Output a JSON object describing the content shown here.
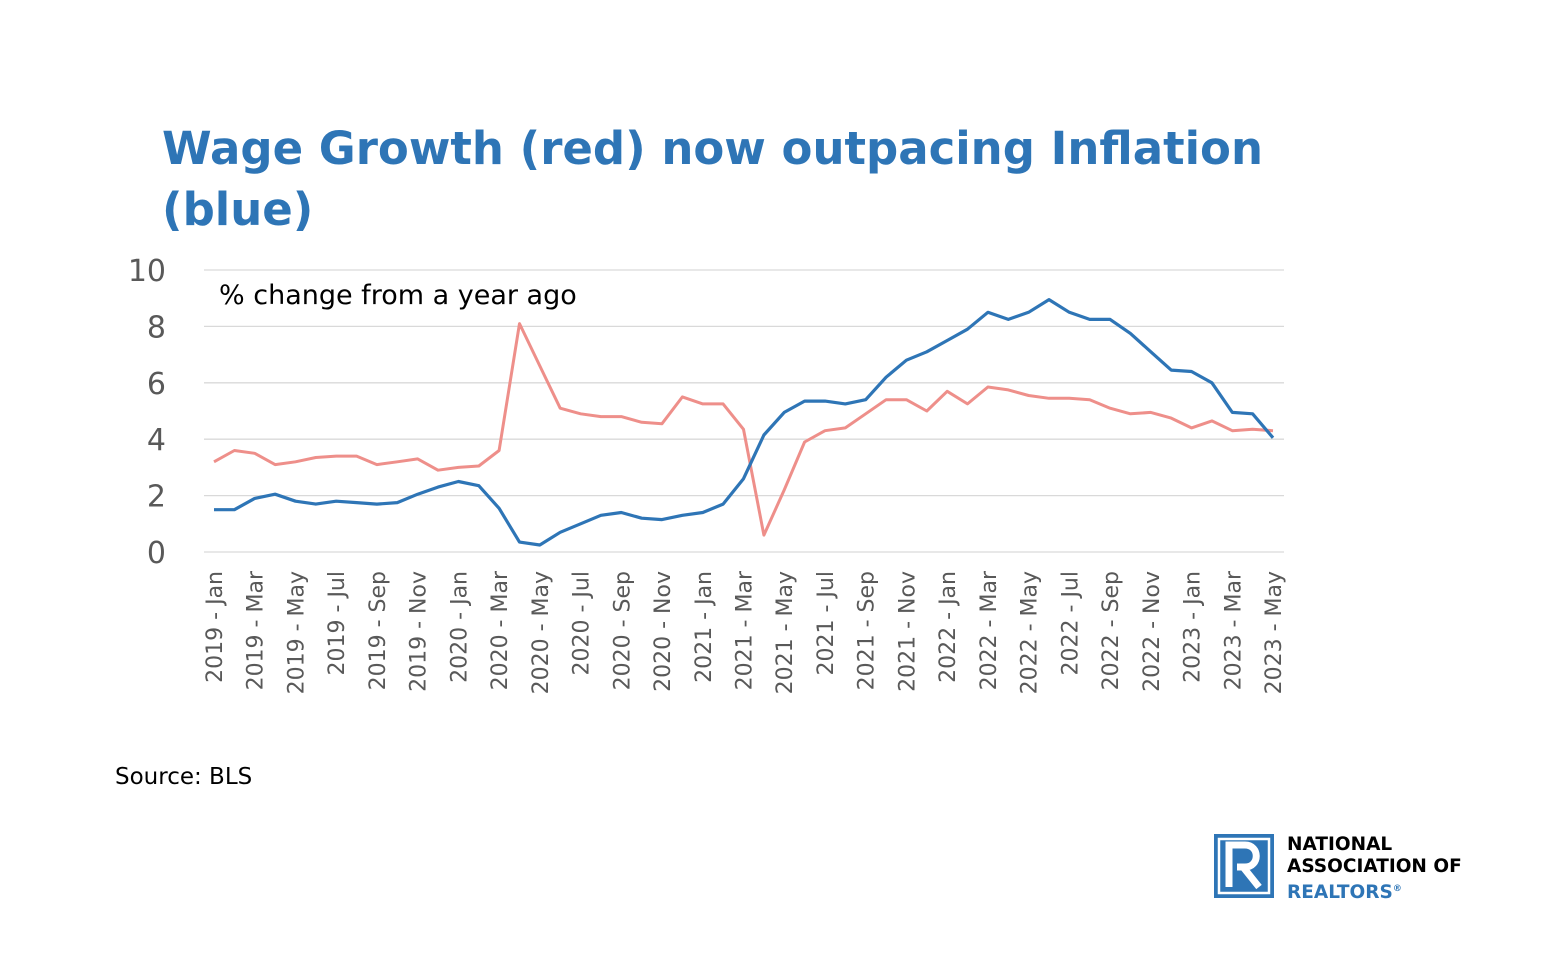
{
  "title": "Wage Growth (red) now outpacing Inflation (blue)",
  "source": "Source: BLS",
  "logo": {
    "line1": "NATIONAL",
    "line2": "ASSOCIATION OF",
    "line3": "REALTORS",
    "mark": "®"
  },
  "chart_data": {
    "type": "line",
    "annotation": "% change from a year ago",
    "ylim": [
      0,
      10
    ],
    "yticks": [
      0,
      2,
      4,
      6,
      8,
      10
    ],
    "grid": true,
    "x": [
      "2019 - Jan",
      "2019 - Feb",
      "2019 - Mar",
      "2019 - Apr",
      "2019 - May",
      "2019 - Jun",
      "2019 - Jul",
      "2019 - Aug",
      "2019 - Sep",
      "2019 - Oct",
      "2019 - Nov",
      "2019 - Dec",
      "2020 - Jan",
      "2020 - Feb",
      "2020 - Mar",
      "2020 - Apr",
      "2020 - May",
      "2020 - Jun",
      "2020 - Jul",
      "2020 - Aug",
      "2020 - Sep",
      "2020 - Oct",
      "2020 - Nov",
      "2020 - Dec",
      "2021 - Jan",
      "2021 - Feb",
      "2021 - Mar",
      "2021 - Apr",
      "2021 - May",
      "2021 - Jun",
      "2021 - Jul",
      "2021 - Aug",
      "2021 - Sep",
      "2021 - Oct",
      "2021 - Nov",
      "2021 - Dec",
      "2022 - Jan",
      "2022 - Feb",
      "2022 - Mar",
      "2022 - Apr",
      "2022 - May",
      "2022 - Jun",
      "2022 - Jul",
      "2022 - Aug",
      "2022 - Sep",
      "2022 - Oct",
      "2022 - Nov",
      "2022 - Dec",
      "2023 - Jan",
      "2023 - Feb",
      "2023 - Mar",
      "2023 - Apr",
      "2023 - May"
    ],
    "xtick_labels": [
      "2019 - Jan",
      "2019 - Mar",
      "2019 - May",
      "2019 - Jul",
      "2019 - Sep",
      "2019 - Nov",
      "2020 - Jan",
      "2020 - Mar",
      "2020 - May",
      "2020 - Jul",
      "2020 - Sep",
      "2020 - Nov",
      "2021 - Jan",
      "2021 - Mar",
      "2021 - May",
      "2021 - Jul",
      "2021 - Sep",
      "2021 - Nov",
      "2022 - Jan",
      "2022 - Mar",
      "2022 - May",
      "2022 - Jul",
      "2022 - Sep",
      "2022 - Nov",
      "2023 - Jan",
      "2023 - Mar",
      "2023 - May"
    ],
    "series": [
      {
        "color": "#ee8f8a",
        "values": [
          3.2,
          3.6,
          3.5,
          3.1,
          3.2,
          3.35,
          3.4,
          3.4,
          3.1,
          3.2,
          3.3,
          2.9,
          3.0,
          3.05,
          3.6,
          8.1,
          6.6,
          5.1,
          4.9,
          4.8,
          4.8,
          4.6,
          4.55,
          5.5,
          5.25,
          5.25,
          4.35,
          0.6,
          2.2,
          3.9,
          4.3,
          4.4,
          4.9,
          5.4,
          5.4,
          5.0,
          5.7,
          5.25,
          5.85,
          5.75,
          5.55,
          5.45,
          5.45,
          5.4,
          5.1,
          4.9,
          4.95,
          4.75,
          4.4,
          4.65,
          4.3,
          4.35,
          4.3
        ]
      },
      {
        "color": "#2e75b6",
        "values": [
          1.5,
          1.5,
          1.9,
          2.05,
          1.8,
          1.7,
          1.8,
          1.75,
          1.7,
          1.75,
          2.05,
          2.3,
          2.5,
          2.35,
          1.55,
          0.35,
          0.25,
          0.7,
          1.0,
          1.3,
          1.4,
          1.2,
          1.15,
          1.3,
          1.4,
          1.7,
          2.6,
          4.15,
          4.95,
          5.35,
          5.35,
          5.25,
          5.4,
          6.2,
          6.8,
          7.1,
          7.5,
          7.9,
          8.5,
          8.25,
          8.5,
          8.95,
          8.5,
          8.25,
          8.25,
          7.75,
          7.1,
          6.45,
          6.4,
          6.0,
          4.95,
          4.9,
          4.05
        ]
      }
    ]
  }
}
